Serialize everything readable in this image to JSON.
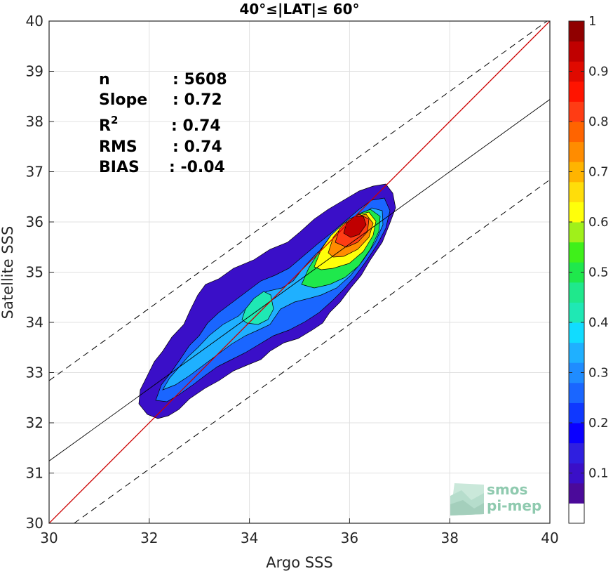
{
  "chart_data": {
    "type": "heatmap",
    "title": "40°≤|LAT|≤ 60°",
    "xlabel": "Argo SSS",
    "ylabel": "Satellite SSS",
    "xlim": [
      30,
      40
    ],
    "ylim": [
      30,
      40
    ],
    "x_ticks": [
      "30",
      "32",
      "34",
      "36",
      "38",
      "40"
    ],
    "y_ticks": [
      "30",
      "31",
      "32",
      "33",
      "34",
      "35",
      "36",
      "37",
      "38",
      "39",
      "40"
    ],
    "grid": true,
    "stats": [
      {
        "label": "n",
        "sup": "",
        "value": ": 5608"
      },
      {
        "label": "Slope",
        "sup": "",
        "value": ": 0.72"
      },
      {
        "label": "R",
        "sup": "2",
        "value": ": 0.74"
      },
      {
        "label": "RMS",
        "sup": "",
        "value": ": 0.74"
      },
      {
        "label": "BIAS",
        "sup": "",
        "value": ": -0.04"
      }
    ],
    "reference_lines": {
      "identity": {
        "x": [
          30,
          40
        ],
        "y": [
          30,
          40
        ],
        "color": "#cc0000"
      },
      "regression": {
        "x": [
          30,
          40
        ],
        "y": [
          31.24,
          38.44
        ],
        "color": "#000000"
      },
      "upper_bound": {
        "x": [
          30,
          40
        ],
        "y": [
          32.84,
          40.04
        ],
        "style": "dashed"
      },
      "lower_bound": {
        "x": [
          30.5,
          40
        ],
        "y": [
          30.0,
          36.84
        ],
        "style": "dashed"
      }
    },
    "density_peak": {
      "x": 36.2,
      "y": 36.0
    },
    "colorbar": {
      "ticks": [
        "0.1",
        "0.2",
        "0.3",
        "0.4",
        "0.5",
        "0.6",
        "0.7",
        "0.8",
        "0.9",
        "1"
      ],
      "range": [
        0,
        1
      ],
      "colors": [
        "#ffffff",
        "#4b0a9a",
        "#3a0fc8",
        "#2f1fe0",
        "#0a00ff",
        "#0f38ff",
        "#1a66ff",
        "#1f8cff",
        "#1fb0ff",
        "#11dcff",
        "#1fe8b4",
        "#1fe88c",
        "#1fe84c",
        "#3ff01a",
        "#a0f01a",
        "#ffff0a",
        "#ffdd0a",
        "#ffb400",
        "#ff8c00",
        "#ff6400",
        "#ff3c14",
        "#ff1400",
        "#e00a00",
        "#c00000",
        "#900000"
      ],
      "step": 0.04
    }
  },
  "logo": {
    "line1": "smos",
    "line2": "pi-mep"
  }
}
